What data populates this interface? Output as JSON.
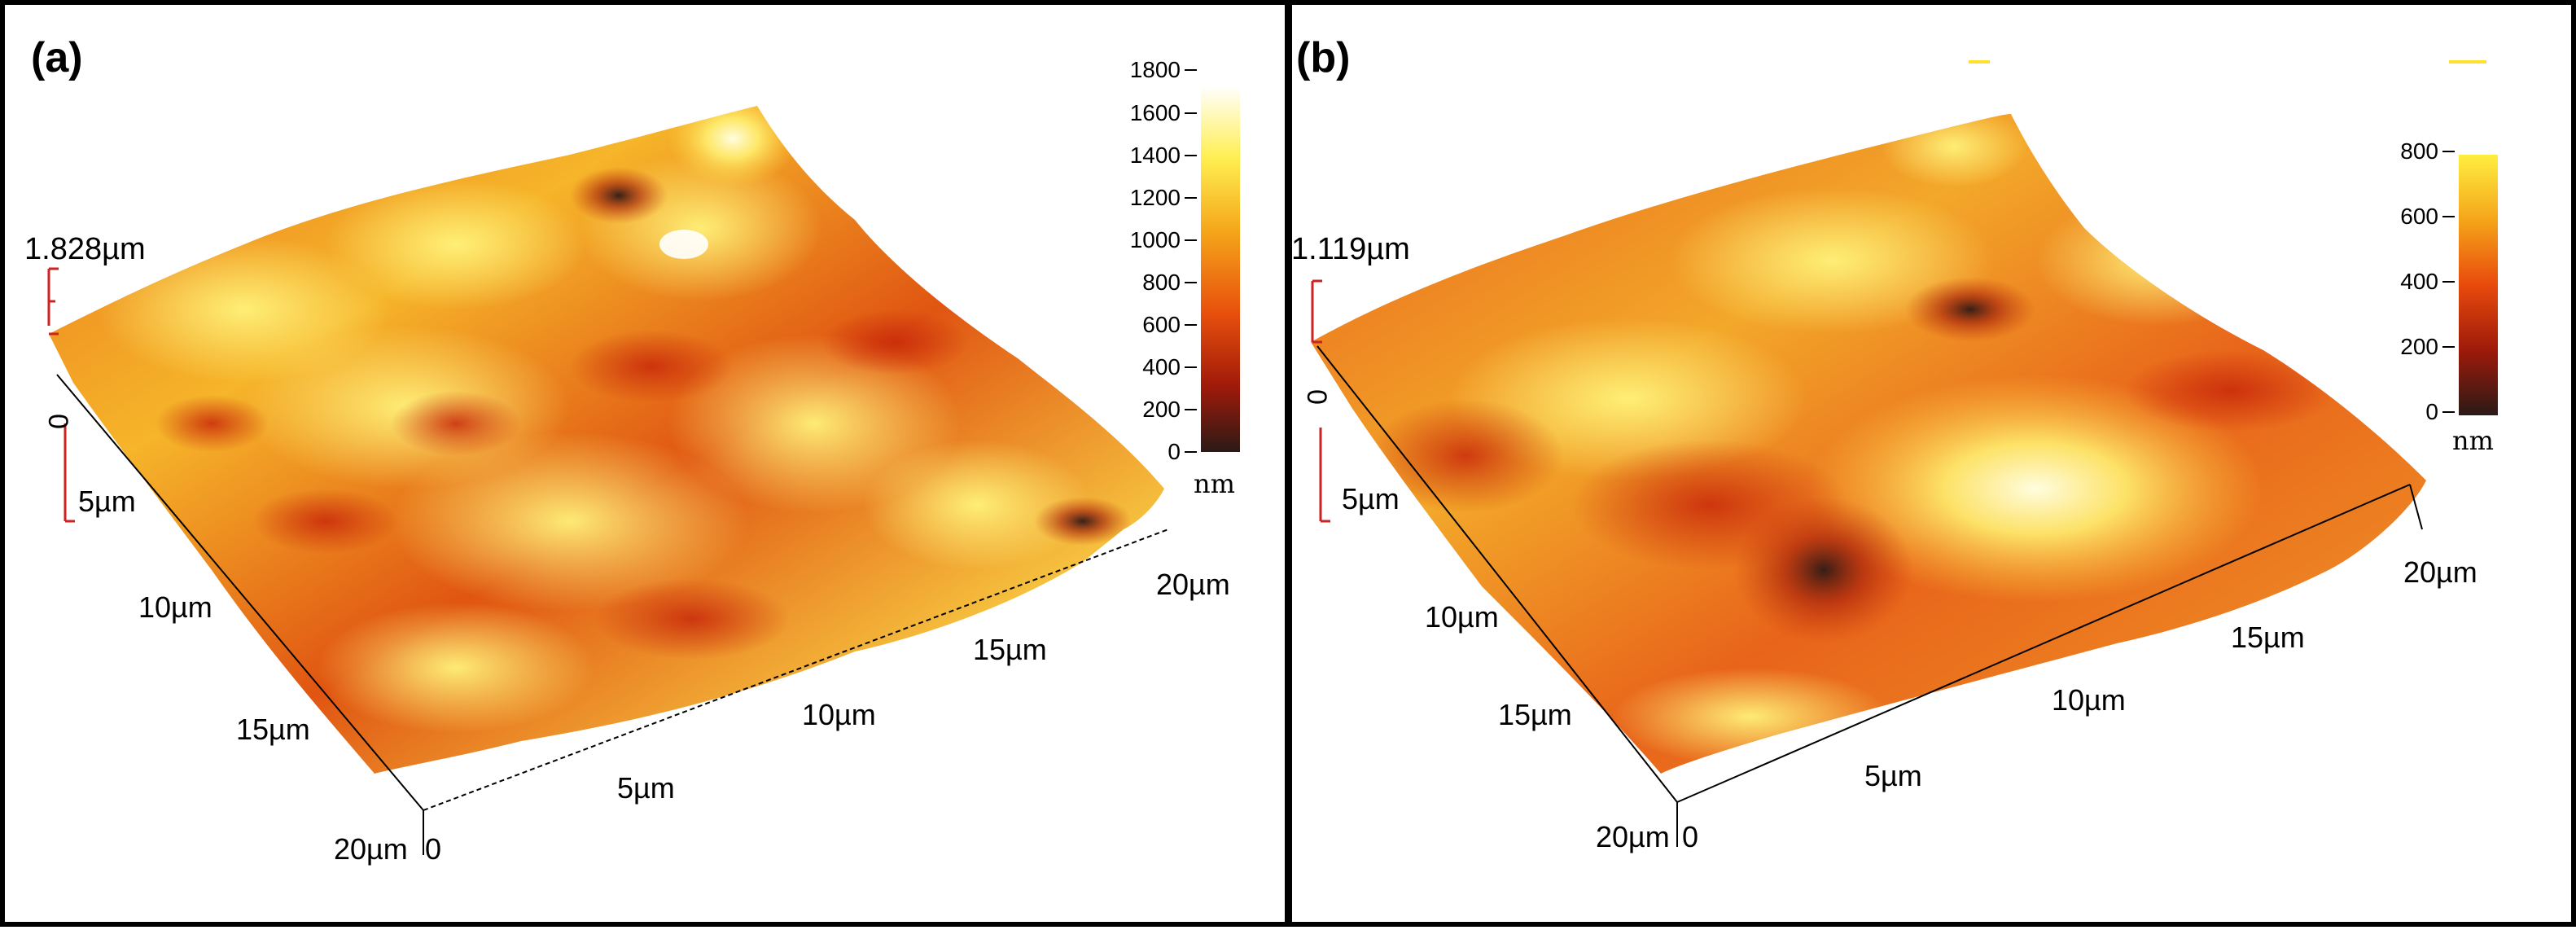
{
  "colors": {
    "low": "#2b1a16",
    "mid_dark": "#b0200a",
    "mid": "#e85a0c",
    "high": "#f5b21a",
    "peak": "#ffff80",
    "top": "#ffffff",
    "axis_red": "#cc2222",
    "frame": "#000000"
  },
  "panels": [
    {
      "id": "a",
      "label": "(a)",
      "z_max": "1.828µm",
      "z_zero": "0",
      "x_ticks": [
        "5µm",
        "10µm",
        "15µm",
        "20µm"
      ],
      "y_ticks": [
        "5µm",
        "10µm",
        "15µm",
        "20µm"
      ],
      "corner_zero": "0",
      "colorbar": {
        "ticks": [
          "1800",
          "1600",
          "1400",
          "1200",
          "1000",
          "800",
          "600",
          "400",
          "200",
          "0"
        ],
        "unit": "nm"
      }
    },
    {
      "id": "b",
      "label": "(b)",
      "z_max": "1.119µm",
      "z_zero": "0",
      "x_ticks": [
        "5µm",
        "10µm",
        "15µm",
        "20µm"
      ],
      "y_ticks": [
        "5µm",
        "10µm",
        "15µm",
        "20µm"
      ],
      "corner_zero": "0",
      "colorbar": {
        "ticks": [
          "800",
          "600",
          "400",
          "200",
          "0"
        ],
        "unit": "nm"
      }
    }
  ]
}
